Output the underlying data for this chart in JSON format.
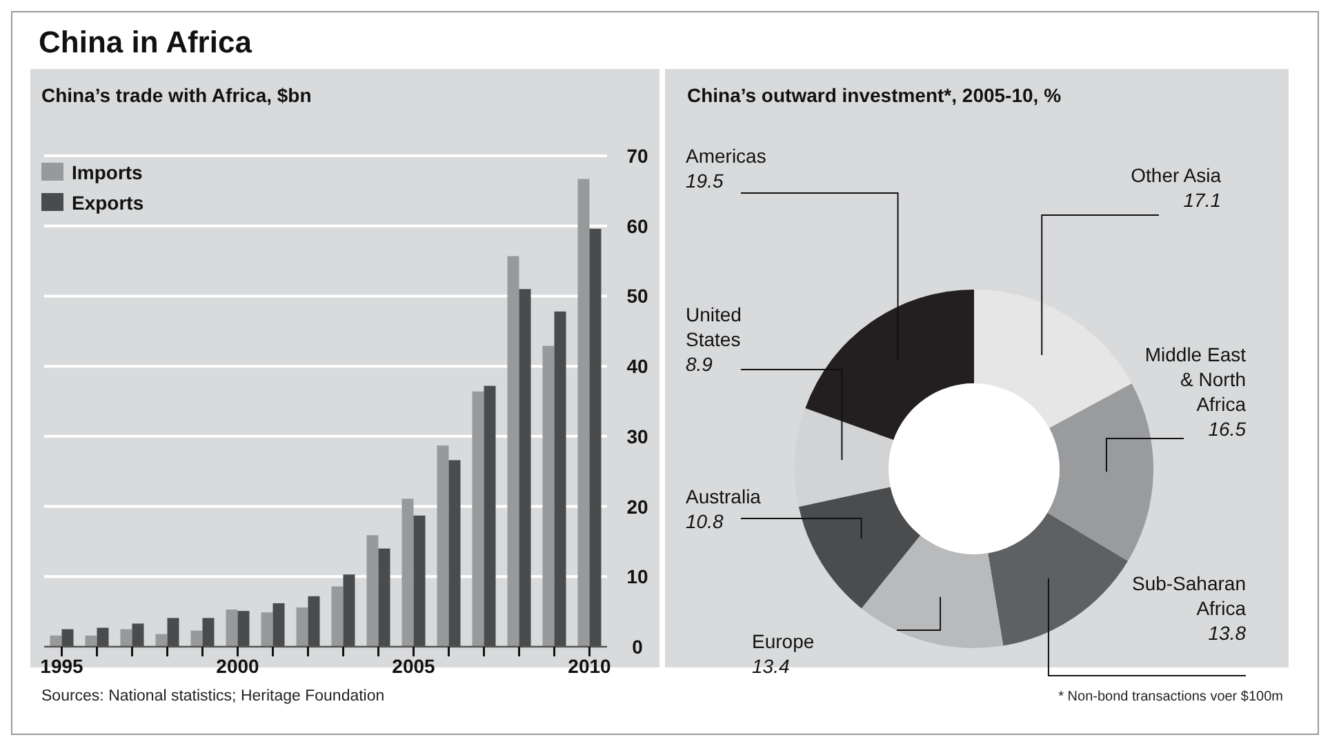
{
  "chart_data": [
    {
      "type": "bar",
      "title": "China in Africa",
      "subtitle": "China’s trade with Africa, $bn",
      "x": [
        1995,
        1996,
        1997,
        1998,
        1999,
        2000,
        2001,
        2002,
        2003,
        2004,
        2005,
        2006,
        2007,
        2008,
        2009,
        2010
      ],
      "series": [
        {
          "name": "Imports",
          "color": "#98999b",
          "values": [
            1.6,
            1.6,
            2.5,
            1.8,
            2.3,
            5.3,
            4.9,
            5.6,
            8.6,
            15.9,
            21.1,
            28.7,
            36.4,
            55.7,
            42.9,
            66.7
          ]
        },
        {
          "name": "Exports",
          "color": "#4a4b4d",
          "values": [
            2.5,
            2.7,
            3.3,
            4.1,
            4.1,
            5.1,
            6.2,
            7.2,
            10.3,
            14.0,
            18.7,
            26.6,
            37.2,
            51.0,
            47.8,
            59.6
          ]
        }
      ],
      "xlim": [
        1994.5,
        2010.5
      ],
      "xticks": [
        1995,
        {
          "value": 1996,
          "label": null
        },
        {
          "value": 1997,
          "label": null
        },
        {
          "value": 1998,
          "label": null
        },
        {
          "value": 1999,
          "label": null
        },
        2000,
        {
          "value": 2001,
          "label": null
        },
        {
          "value": 2002,
          "label": null
        },
        {
          "value": 2003,
          "label": null
        },
        {
          "value": 2004,
          "label": null
        },
        2005,
        {
          "value": 2006,
          "label": null
        },
        {
          "value": 2007,
          "label": null
        },
        {
          "value": 2008,
          "label": null
        },
        {
          "value": 2009,
          "label": null
        },
        2010
      ],
      "ylim": [
        0,
        70
      ],
      "yticks": [
        0,
        10,
        20,
        30,
        40,
        50,
        60,
        70
      ],
      "grid": "y",
      "legend": "top left",
      "annotations": [
        "Sources: National statistics; Heritage Foundation"
      ]
    },
    {
      "type": "donut",
      "title": "China’s outward investment*, 2005-10, %",
      "categories": [
        "Other Asia",
        "Middle East\n& North\nAfrica",
        "Sub-Saharan\nAfrica",
        "Europe",
        "Australia",
        "United\nStates",
        "Americas"
      ],
      "values": [
        17.1,
        16.5,
        13.8,
        13.4,
        10.8,
        8.9,
        19.5
      ],
      "colors": [
        "#e6e6e6",
        "#9a9b9d",
        "#5f6062",
        "#b9babb",
        "#4b4c4e",
        "#d2d3d4",
        "#231f20"
      ],
      "data_labels": true,
      "annotations": [
        "* Non-bond transactions voer $100m"
      ]
    }
  ]
}
